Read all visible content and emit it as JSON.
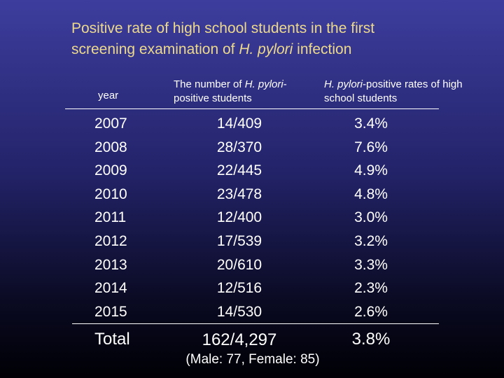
{
  "title": [
    "Positive rate of high school students in the first screening examination of ",
    "H. pylori",
    " infection"
  ],
  "table": {
    "header": [
      [
        "year"
      ],
      [
        "The number of ",
        "H. pylori",
        "-positive students"
      ],
      [
        "H. pylori",
        "-positive rates of high school students"
      ]
    ],
    "rows": [
      [
        "2007",
        "14/409",
        "3.4%"
      ],
      [
        "2008",
        "28/370",
        "7.6%"
      ],
      [
        "2009",
        "22/445",
        "4.9%"
      ],
      [
        "2010",
        "23/478",
        "4.8%"
      ],
      [
        "2011",
        "12/400",
        "3.0%"
      ],
      [
        "2012",
        "17/539",
        "3.2%"
      ],
      [
        "2013",
        "20/610",
        "3.3%"
      ],
      [
        "2014",
        "12/516",
        "2.3%"
      ],
      [
        "2015",
        "14/530",
        "2.6%"
      ]
    ],
    "total": [
      "Total",
      "162/4,297",
      "3.8%"
    ],
    "note": "(Male: 77, Female: 85)"
  }
}
